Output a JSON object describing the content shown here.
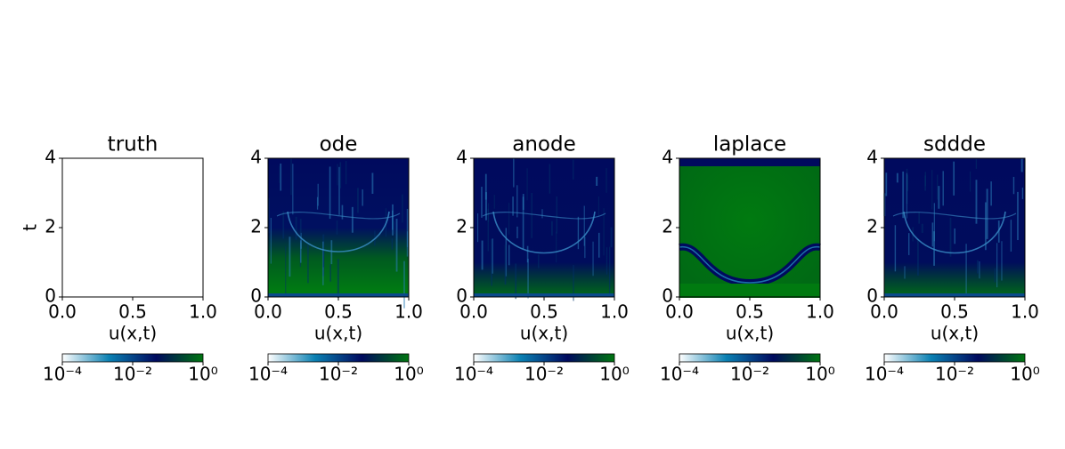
{
  "chart_data": [
    {
      "type": "heatmap",
      "title": "truth",
      "xlabel": "u(x,t)",
      "ylabel": "t",
      "xlim": [
        0,
        1
      ],
      "ylim": [
        0,
        4
      ],
      "xticks": [
        {
          "value": 0,
          "label": "0.0"
        },
        {
          "value": 0.5,
          "label": "0.5"
        },
        {
          "value": 1,
          "label": "1.0"
        }
      ],
      "yticks": [
        0,
        2,
        4
      ],
      "colorbar": {
        "scale": "log",
        "clim": [
          0.0001,
          1
        ],
        "colormap": [
          "#ffffff",
          "#0a80b2",
          "#000a5e",
          "#007510"
        ],
        "ticks": [
          {
            "value": 0.0001,
            "label": "10⁻⁴"
          },
          {
            "value": 0.01,
            "label": "10⁻²"
          },
          {
            "value": 1,
            "label": "10⁰"
          }
        ]
      }
    },
    {
      "type": "heatmap",
      "title": "ode",
      "xlabel": "u(x,t)",
      "xlim": [
        0,
        1
      ],
      "ylim": [
        0,
        4
      ],
      "xticks": [
        {
          "value": 0,
          "label": "0.0"
        },
        {
          "value": 0.5,
          "label": "0.5"
        },
        {
          "value": 1,
          "label": "1.0"
        }
      ],
      "yticks": [
        0,
        2,
        4
      ],
      "colorbar": {
        "scale": "log",
        "clim": [
          0.0001,
          1
        ],
        "colormap": [
          "#ffffff",
          "#0a80b2",
          "#000a5e",
          "#007510"
        ],
        "ticks": [
          {
            "value": 0.0001,
            "label": "10⁻⁴"
          },
          {
            "value": 0.01,
            "label": "10⁻²"
          },
          {
            "value": 1,
            "label": "10⁰"
          }
        ]
      }
    },
    {
      "type": "heatmap",
      "title": "anode",
      "xlabel": "u(x,t)",
      "xlim": [
        0,
        1
      ],
      "ylim": [
        0,
        4
      ],
      "xticks": [
        {
          "value": 0,
          "label": "0.0"
        },
        {
          "value": 0.5,
          "label": "0.5"
        },
        {
          "value": 1,
          "label": "1.0"
        }
      ],
      "yticks": [
        0,
        2,
        4
      ],
      "colorbar": {
        "scale": "log",
        "clim": [
          0.0001,
          1
        ],
        "colormap": [
          "#ffffff",
          "#0a80b2",
          "#000a5e",
          "#007510"
        ],
        "ticks": [
          {
            "value": 0.0001,
            "label": "10⁻⁴"
          },
          {
            "value": 0.01,
            "label": "10⁻²"
          },
          {
            "value": 1,
            "label": "10⁰"
          }
        ]
      }
    },
    {
      "type": "heatmap",
      "title": "laplace",
      "xlabel": "u(x,t)",
      "xlim": [
        0,
        1
      ],
      "ylim": [
        0,
        4
      ],
      "xticks": [
        {
          "value": 0,
          "label": "0.0"
        },
        {
          "value": 0.5,
          "label": "0.5"
        },
        {
          "value": 1,
          "label": "1.0"
        }
      ],
      "yticks": [
        0,
        2,
        4
      ],
      "colorbar": {
        "scale": "log",
        "clim": [
          0.0001,
          1
        ],
        "colormap": [
          "#ffffff",
          "#0a80b2",
          "#000a5e",
          "#007510"
        ],
        "ticks": [
          {
            "value": 0.0001,
            "label": "10⁻⁴"
          },
          {
            "value": 0.01,
            "label": "10⁻²"
          },
          {
            "value": 1,
            "label": "10⁰"
          }
        ]
      }
    },
    {
      "type": "heatmap",
      "title": "sddde",
      "xlabel": "u(x,t)",
      "xlim": [
        0,
        1
      ],
      "ylim": [
        0,
        4
      ],
      "xticks": [
        {
          "value": 0,
          "label": "0.0"
        },
        {
          "value": 0.5,
          "label": "0.5"
        },
        {
          "value": 1,
          "label": "1.0"
        }
      ],
      "yticks": [
        0,
        2,
        4
      ],
      "colorbar": {
        "scale": "log",
        "clim": [
          0.0001,
          1
        ],
        "colormap": [
          "#ffffff",
          "#0a80b2",
          "#000a5e",
          "#007510"
        ],
        "ticks": [
          {
            "value": 0.0001,
            "label": "10⁻⁴"
          },
          {
            "value": 0.01,
            "label": "10⁻²"
          },
          {
            "value": 1,
            "label": "10⁰"
          }
        ]
      }
    }
  ]
}
